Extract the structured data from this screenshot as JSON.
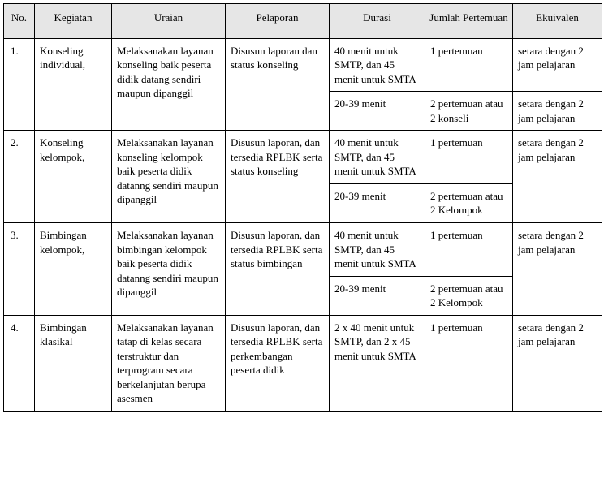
{
  "headers": {
    "no": "No.",
    "kegiatan": "Kegiatan",
    "uraian": "Uraian",
    "pelaporan": "Pelaporan",
    "durasi": "Durasi",
    "jumlah": "Jumlah Pertemuan",
    "ekuivalen": "Ekuivalen"
  },
  "rows": [
    {
      "no": "1.",
      "kegiatan": "Konseling individual,",
      "uraian": "Melaksanakan layanan konseling baik peserta didik datang sendiri maupun dipanggil",
      "pelaporan": "Disusun laporan dan status konseling",
      "durasi1": "40 menit untuk SMTP, dan 45 menit untuk SMTA",
      "jumlah1": " 1 pertemuan",
      "ekuivalen1": "setara dengan 2 jam pelajaran",
      "durasi2": "20-39  menit",
      "jumlah2": "2 pertemuan atau 2 konseli",
      "ekuivalen2": "setara dengan 2 jam pelajaran"
    },
    {
      "no": "2.",
      "kegiatan": "Konseling kelompok,",
      "uraian": "Melaksanakan layanan  konseling kelompok  baik peserta didik datanng sendiri maupun dipanggil",
      "pelaporan": "Disusun laporan, dan tersedia RPLBK  serta status konseling",
      "durasi1": "40 menit untuk SMTP, dan 45 menit untuk SMTA",
      "jumlah1": "  1 pertemuan",
      "ekuivalen1": "setara dengan 2 jam pelajaran",
      "durasi2": "20-39 menit",
      "jumlah2": "2 pertemuan atau 2 Kelompok",
      "ekuivalen2": ""
    },
    {
      "no": "3.",
      "kegiatan": "Bimbingan kelompok,",
      "uraian": "Melaksanakan layanan  bimbingan kelompok  baik peserta didik datanng sendiri maupun dipanggil",
      "pelaporan": "Disusun laporan, dan tersedia RPLBK serta status bimbingan",
      "durasi1": "40 menit untuk SMTP, dan 45 menit untuk SMTA",
      "jumlah1": "1 pertemuan",
      "ekuivalen1": "setara dengan 2 jam pelajaran",
      "durasi2": "20-39 menit",
      "jumlah2": "2 pertemuan atau 2 Kelompok",
      "ekuivalen2": ""
    },
    {
      "no": "4.",
      "kegiatan": "Bimbingan klasikal",
      "uraian": "Melaksanakan layanan tatap di kelas secara terstruktur dan terprogram secara berkelanjutan berupa asesmen",
      "pelaporan": "Disusun laporan, dan tersedia RPLBK serta perkembangan peserta didik",
      "durasi1": " 2 x 40 menit untuk SMTP, dan 2 x  45 menit untuk SMTA",
      "jumlah1": "1 pertemuan",
      "ekuivalen1": "setara dengan 2 jam pelajaran",
      "durasi2": "",
      "jumlah2": "",
      "ekuivalen2": ""
    }
  ]
}
